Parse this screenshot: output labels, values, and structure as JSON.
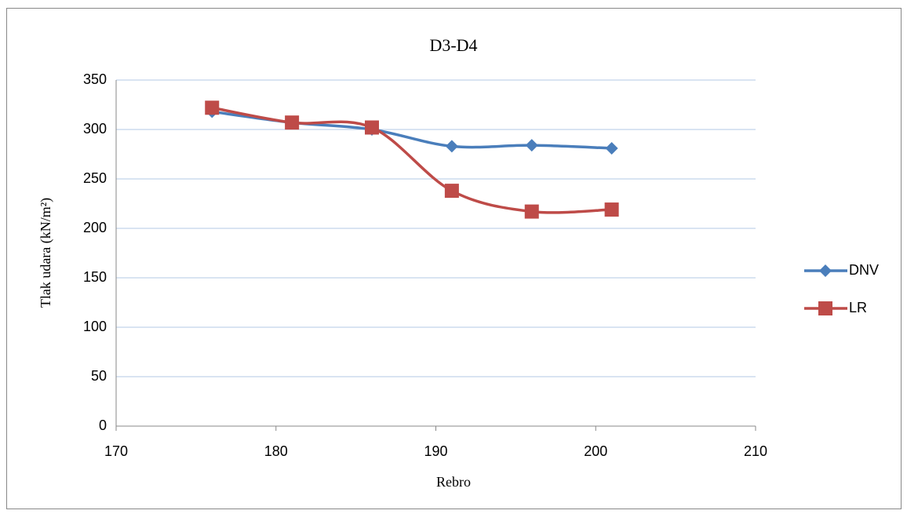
{
  "chart_data": {
    "type": "line",
    "title": "D3-D4",
    "x_label": "Rebro",
    "y_label": "Tlak udara (kN/m²)",
    "x": [
      176,
      181,
      186,
      191,
      196,
      201
    ],
    "series": [
      {
        "name": "DNV",
        "color": "#4a7ebb",
        "marker": "diamond",
        "values": [
          318,
          307,
          300,
          283,
          284,
          281
        ]
      },
      {
        "name": "LR",
        "color": "#be4b48",
        "marker": "square",
        "values": [
          322,
          307,
          302,
          238,
          217,
          219
        ]
      }
    ],
    "xlim": [
      170,
      210
    ],
    "xticks": [
      170,
      180,
      190,
      200,
      210
    ],
    "ylim": [
      0,
      350
    ],
    "yticks": [
      0,
      50,
      100,
      150,
      200,
      250,
      300,
      350
    ],
    "grid": true,
    "smooth": true,
    "legend": "right"
  }
}
